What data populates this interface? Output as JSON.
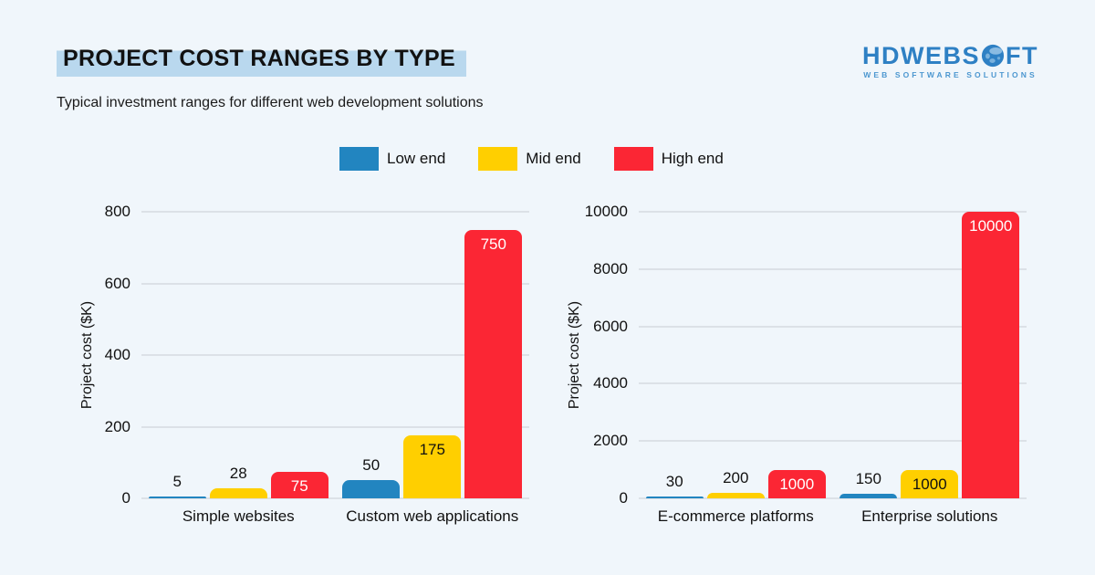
{
  "theme": {
    "background": "#f0f6fb",
    "title_highlight": "#b9d8ee",
    "logo_blue": "#2e80c4",
    "logo_blue_light": "#4c97d0",
    "grid_color": "#dce1e7",
    "text_color": "#111111"
  },
  "header": {
    "title": "PROJECT COST RANGES BY TYPE",
    "subtitle": "Typical investment ranges for different web development solutions"
  },
  "logo": {
    "text_before_globe": "HDWEBS",
    "text_after_globe": "FT",
    "globe_icon": "globe-icon",
    "tagline": "WEB SOFTWARE SOLUTIONS"
  },
  "legend": {
    "items": [
      {
        "label": "Low end",
        "color": "#2285c0"
      },
      {
        "label": "Mid end",
        "color": "#ffcf00"
      },
      {
        "label": "High end",
        "color": "#fb2634"
      }
    ]
  },
  "chart_data": [
    {
      "type": "bar",
      "title": "",
      "ylabel": "Project cost ($K)",
      "ylim": [
        0,
        800
      ],
      "yticks": [
        0,
        200,
        400,
        600,
        800
      ],
      "grid": true,
      "legend_position": "top",
      "ylabel_center_offset": -59,
      "categories": [
        "Simple websites",
        "Custom web applications"
      ],
      "series": [
        {
          "name": "Low end",
          "color": "#2285c0",
          "values": [
            5,
            50
          ],
          "inside_label_color": "#ffffff"
        },
        {
          "name": "Mid end",
          "color": "#ffcf00",
          "values": [
            28,
            175
          ],
          "inside_label_color": "#111111"
        },
        {
          "name": "High end",
          "color": "#fb2634",
          "values": [
            75,
            750
          ],
          "inside_label_color": "#ffffff"
        }
      ]
    },
    {
      "type": "bar",
      "title": "",
      "ylabel": "Project cost ($K)",
      "ylim": [
        0,
        10000
      ],
      "yticks": [
        0,
        2000,
        4000,
        6000,
        8000,
        10000
      ],
      "grid": true,
      "legend_position": "top",
      "ylabel_center_offset": -70,
      "categories": [
        "E-commerce platforms",
        "Enterprise solutions"
      ],
      "series": [
        {
          "name": "Low end",
          "color": "#2285c0",
          "values": [
            30,
            150
          ],
          "inside_label_color": "#ffffff"
        },
        {
          "name": "Mid end",
          "color": "#ffcf00",
          "values": [
            200,
            1000
          ],
          "inside_label_color": "#111111"
        },
        {
          "name": "High end",
          "color": "#fb2634",
          "values": [
            1000,
            10000
          ],
          "inside_label_color": "#ffffff"
        }
      ]
    }
  ]
}
